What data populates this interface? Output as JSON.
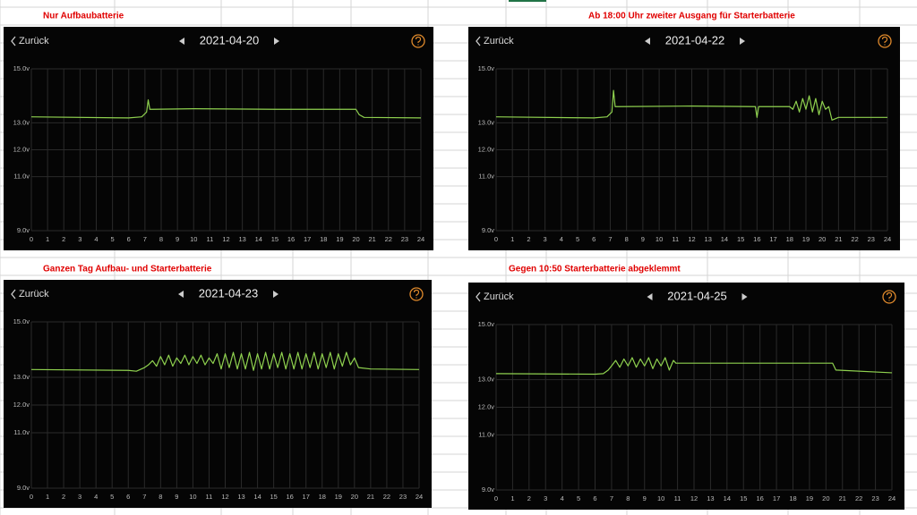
{
  "chart_data": [
    {
      "type": "line",
      "annotation": "Nur Aufbaubatterie",
      "back_label": "Zurück",
      "title": "2021-04-20",
      "color": "#8fd14f",
      "xlim": [
        0,
        24
      ],
      "ylim": [
        9,
        15
      ],
      "xticks": [
        0,
        1,
        2,
        3,
        4,
        5,
        6,
        7,
        8,
        9,
        10,
        11,
        12,
        13,
        14,
        15,
        16,
        17,
        18,
        19,
        20,
        21,
        22,
        23,
        24
      ],
      "yticks": [
        {
          "value": 15,
          "label": "15.0v"
        },
        {
          "value": 13,
          "label": "13.0v"
        },
        {
          "value": 12,
          "label": "12.0v"
        },
        {
          "value": 11,
          "label": "11.0v"
        },
        {
          "value": 9,
          "label": "9.0v"
        }
      ],
      "x": [
        0,
        6,
        6.8,
        7.1,
        7.2,
        7.3,
        7.5,
        10,
        15,
        20,
        20.2,
        20.5,
        24
      ],
      "values": [
        13.22,
        13.18,
        13.22,
        13.4,
        13.85,
        13.5,
        13.5,
        13.52,
        13.5,
        13.5,
        13.3,
        13.2,
        13.18
      ]
    },
    {
      "type": "line",
      "annotation": "Ab 18:00 Uhr zweiter Ausgang für Starterbatterie",
      "back_label": "Zurück",
      "title": "2021-04-22",
      "color": "#8fd14f",
      "xlim": [
        0,
        24
      ],
      "ylim": [
        9,
        15
      ],
      "xticks": [
        0,
        1,
        2,
        3,
        4,
        5,
        6,
        7,
        8,
        9,
        10,
        11,
        12,
        13,
        14,
        15,
        16,
        17,
        18,
        19,
        20,
        21,
        22,
        23,
        24
      ],
      "yticks": [
        {
          "value": 15,
          "label": "15.0v"
        },
        {
          "value": 13,
          "label": "13.0v"
        },
        {
          "value": 12,
          "label": "12.0v"
        },
        {
          "value": 11,
          "label": "11.0v"
        },
        {
          "value": 9,
          "label": "9.0v"
        }
      ],
      "x": [
        0,
        6,
        6.8,
        7.1,
        7.2,
        7.3,
        7.5,
        12,
        15.9,
        16,
        16.1,
        17.5,
        18,
        18.2,
        18.4,
        18.6,
        18.8,
        19,
        19.2,
        19.4,
        19.6,
        19.8,
        20,
        20.2,
        20.4,
        20.6,
        21,
        24
      ],
      "values": [
        13.22,
        13.18,
        13.22,
        13.4,
        14.2,
        13.6,
        13.6,
        13.62,
        13.6,
        13.2,
        13.6,
        13.6,
        13.6,
        13.5,
        13.8,
        13.4,
        13.9,
        13.5,
        14.0,
        13.4,
        13.9,
        13.3,
        13.8,
        13.5,
        13.6,
        13.1,
        13.2,
        13.2
      ]
    },
    {
      "type": "line",
      "annotation": "Ganzen Tag Aufbau- und Starterbatterie",
      "back_label": "Zurück",
      "title": "2021-04-23",
      "color": "#8fd14f",
      "xlim": [
        0,
        24
      ],
      "ylim": [
        9,
        15
      ],
      "xticks": [
        0,
        1,
        2,
        3,
        4,
        5,
        6,
        7,
        8,
        9,
        10,
        11,
        12,
        13,
        14,
        15,
        16,
        17,
        18,
        19,
        20,
        21,
        22,
        23,
        24
      ],
      "yticks": [
        {
          "value": 15,
          "label": "15.0v"
        },
        {
          "value": 13,
          "label": "13.0v"
        },
        {
          "value": 12,
          "label": "12.0v"
        },
        {
          "value": 11,
          "label": "11.0v"
        },
        {
          "value": 9,
          "label": "9.0v"
        }
      ],
      "x": [
        0,
        6,
        6.5,
        7,
        7.25,
        7.5,
        7.75,
        8,
        8.25,
        8.5,
        8.75,
        9,
        9.25,
        9.5,
        9.75,
        10,
        10.25,
        10.5,
        10.75,
        11,
        11.25,
        11.5,
        11.75,
        12,
        12.25,
        12.5,
        12.75,
        13,
        13.25,
        13.5,
        13.75,
        14,
        14.25,
        14.5,
        14.75,
        15,
        15.25,
        15.5,
        15.75,
        16,
        16.25,
        16.5,
        16.75,
        17,
        17.25,
        17.5,
        17.75,
        18,
        18.25,
        18.5,
        18.75,
        19,
        19.25,
        19.5,
        19.75,
        20,
        20.25,
        21,
        24
      ],
      "values": [
        13.28,
        13.25,
        13.22,
        13.35,
        13.45,
        13.6,
        13.4,
        13.75,
        13.45,
        13.8,
        13.4,
        13.7,
        13.5,
        13.8,
        13.45,
        13.75,
        13.5,
        13.8,
        13.45,
        13.7,
        13.5,
        13.85,
        13.3,
        13.85,
        13.35,
        13.9,
        13.3,
        13.85,
        13.3,
        13.9,
        13.25,
        13.85,
        13.3,
        13.9,
        13.3,
        13.85,
        13.35,
        13.9,
        13.3,
        13.85,
        13.3,
        13.9,
        13.3,
        13.85,
        13.35,
        13.9,
        13.3,
        13.85,
        13.35,
        13.9,
        13.3,
        13.85,
        13.4,
        13.9,
        13.45,
        13.7,
        13.35,
        13.3,
        13.28
      ]
    },
    {
      "type": "line",
      "annotation": "Gegen 10:50 Starterbatterie abgeklemmt",
      "back_label": "Zurück",
      "title": "2021-04-25",
      "color": "#8fd14f",
      "xlim": [
        0,
        24
      ],
      "ylim": [
        9,
        15
      ],
      "xticks": [
        0,
        1,
        2,
        3,
        4,
        5,
        6,
        7,
        8,
        9,
        10,
        11,
        12,
        13,
        14,
        15,
        16,
        17,
        18,
        19,
        20,
        21,
        22,
        23,
        24
      ],
      "yticks": [
        {
          "value": 15,
          "label": "15.0v"
        },
        {
          "value": 13,
          "label": "13.0v"
        },
        {
          "value": 12,
          "label": "12.0v"
        },
        {
          "value": 11,
          "label": "11.0v"
        },
        {
          "value": 9,
          "label": "9.0v"
        }
      ],
      "x": [
        0,
        6,
        6.5,
        6.8,
        7,
        7.25,
        7.5,
        7.75,
        8,
        8.25,
        8.5,
        8.75,
        9,
        9.25,
        9.5,
        9.75,
        10,
        10.25,
        10.5,
        10.75,
        10.9,
        20.4,
        20.6,
        24
      ],
      "values": [
        13.22,
        13.2,
        13.22,
        13.35,
        13.5,
        13.7,
        13.45,
        13.75,
        13.5,
        13.8,
        13.45,
        13.75,
        13.5,
        13.8,
        13.4,
        13.75,
        13.5,
        13.8,
        13.35,
        13.7,
        13.6,
        13.6,
        13.35,
        13.25
      ]
    }
  ]
}
